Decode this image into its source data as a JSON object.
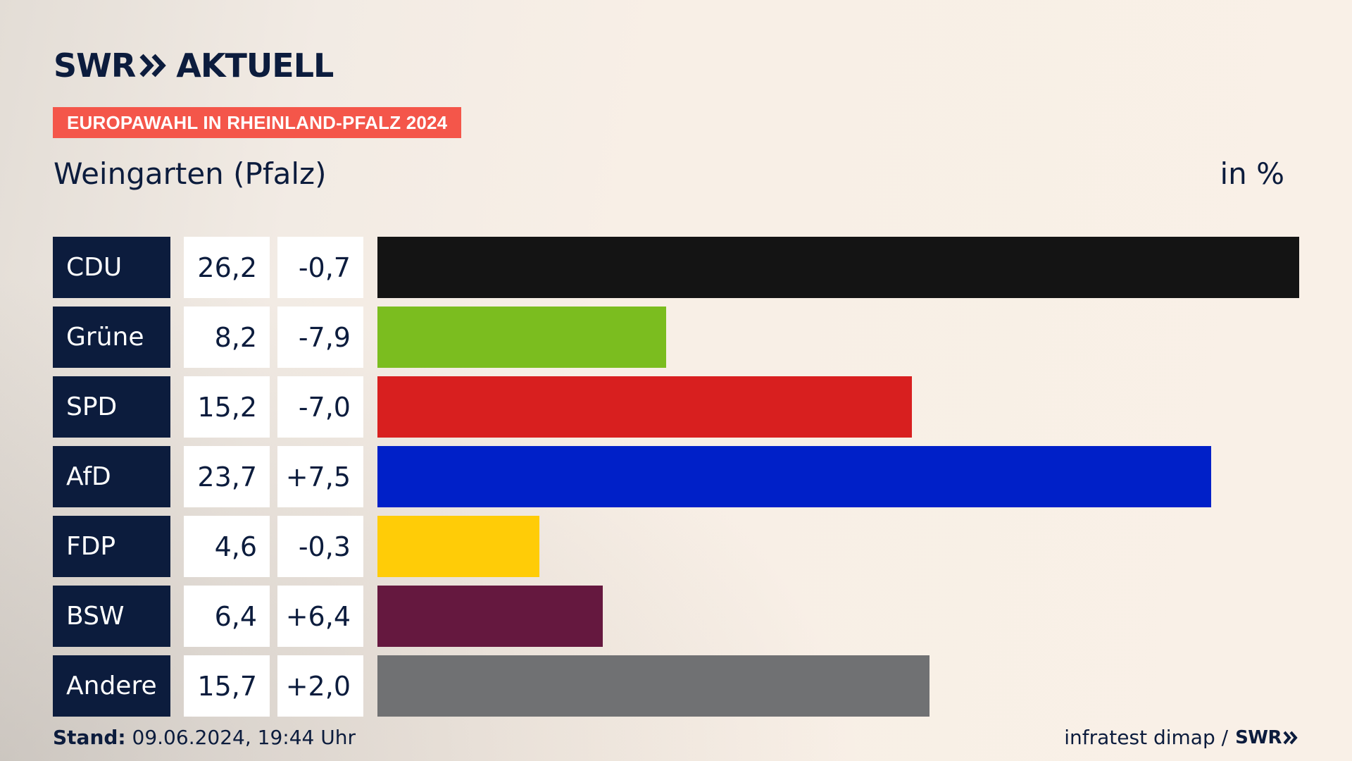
{
  "brand": {
    "logo_text": "SWR",
    "product_text": "AKTUELL"
  },
  "tag": "EUROPAWAHL IN RHEINLAND-PFALZ 2024",
  "place": "Weingarten (Pfalz)",
  "unit": "in %",
  "chart_data": {
    "type": "bar",
    "orientation": "horizontal",
    "categories": [
      "CDU",
      "Grüne",
      "SPD",
      "AfD",
      "FDP",
      "BSW",
      "Andere"
    ],
    "values": [
      26.2,
      8.2,
      15.2,
      23.7,
      4.6,
      6.4,
      15.7
    ],
    "values_label": [
      "26,2",
      "8,2",
      "15,2",
      "23,7",
      "4,6",
      "6,4",
      "15,7"
    ],
    "changes_label": [
      "-0,7",
      "-7,9",
      "-7,0",
      "+7,5",
      "-0,3",
      "+6,4",
      "+2,0"
    ],
    "colors": [
      "#141414",
      "#7bbd1f",
      "#d81f1f",
      "#0020c8",
      "#ffcc07",
      "#65183f",
      "#707173"
    ],
    "xlim": [
      0,
      26.2
    ]
  },
  "footer": {
    "stand_label": "Stand:",
    "stand_value": "09.06.2024, 19:44 Uhr",
    "source": "infratest dimap /",
    "source_logo": "SWR"
  }
}
